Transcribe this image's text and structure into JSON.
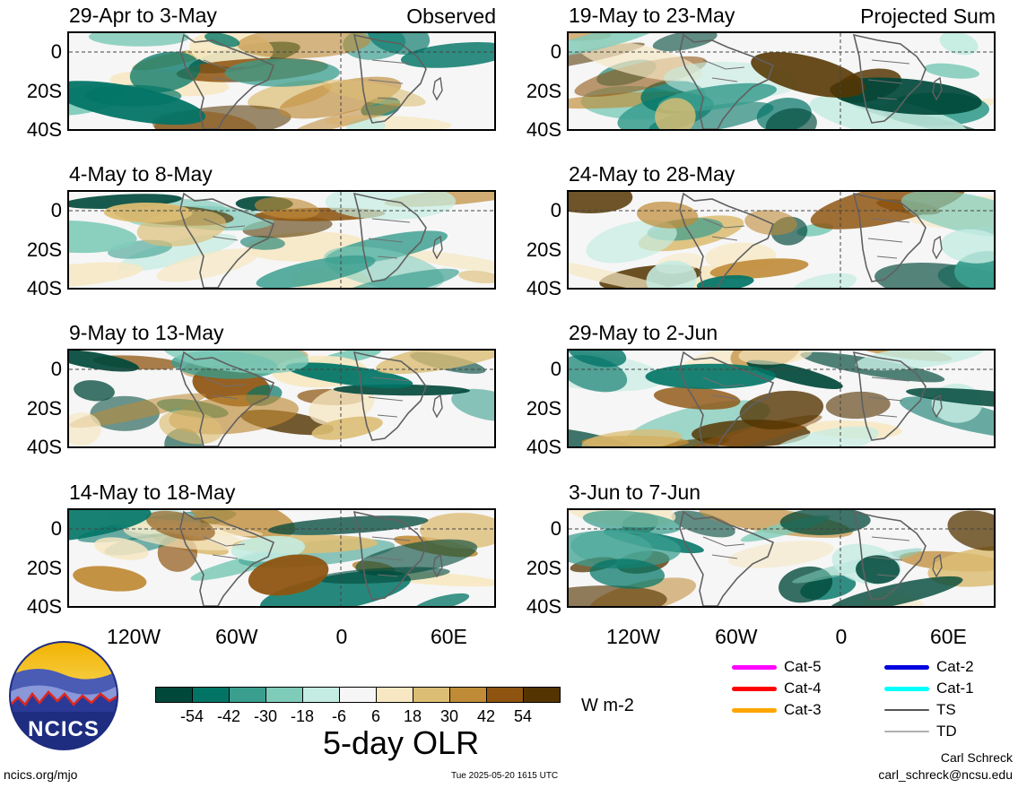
{
  "panels": {
    "left": [
      {
        "title": "29-Apr to 3-May",
        "note": "Observed"
      },
      {
        "title": "4-May to 8-May",
        "note": ""
      },
      {
        "title": "9-May to 13-May",
        "note": ""
      },
      {
        "title": "14-May to 18-May",
        "note": ""
      }
    ],
    "right": [
      {
        "title": "19-May to 23-May",
        "note": "Projected Sum"
      },
      {
        "title": "24-May to 28-May",
        "note": ""
      },
      {
        "title": "29-May to 2-Jun",
        "note": ""
      },
      {
        "title": "3-Jun to 7-Jun",
        "note": ""
      }
    ]
  },
  "axes": {
    "y_labels": [
      "0",
      "20S",
      "40S"
    ],
    "x_labels": [
      "120W",
      "60W",
      "0",
      "60E"
    ]
  },
  "colorbar": {
    "ticks": [
      "-54",
      "-42",
      "-30",
      "-18",
      "-6",
      "6",
      "18",
      "30",
      "42",
      "54"
    ],
    "colors": [
      "#00483a",
      "#017466",
      "#3a9e8f",
      "#7fcbb9",
      "#c5ece2",
      "#f6f6f6",
      "#f7e8c3",
      "#dcbd74",
      "#bf8b37",
      "#8e5410",
      "#543400"
    ],
    "units": "W m-2",
    "title": "5-day OLR"
  },
  "storm_legend": [
    {
      "label": "Cat-5",
      "color": "#ff00ff"
    },
    {
      "label": "Cat-4",
      "color": "#ff0000"
    },
    {
      "label": "Cat-3",
      "color": "#ffa500"
    },
    {
      "label": "Cat-2",
      "color": "#0000e0"
    },
    {
      "label": "Cat-1",
      "color": "#00ffff"
    },
    {
      "label": "TS",
      "color": "#555555"
    },
    {
      "label": "TD",
      "color": "#b0b0b0"
    }
  ],
  "logo": {
    "text": "NCICS"
  },
  "footer": {
    "site": "ncics.org/mjo",
    "timestamp": "Tue 2025-05-20 1615 UTC",
    "author": "Carl Schreck",
    "email": "carl_schreck@ncsu.edu"
  }
}
